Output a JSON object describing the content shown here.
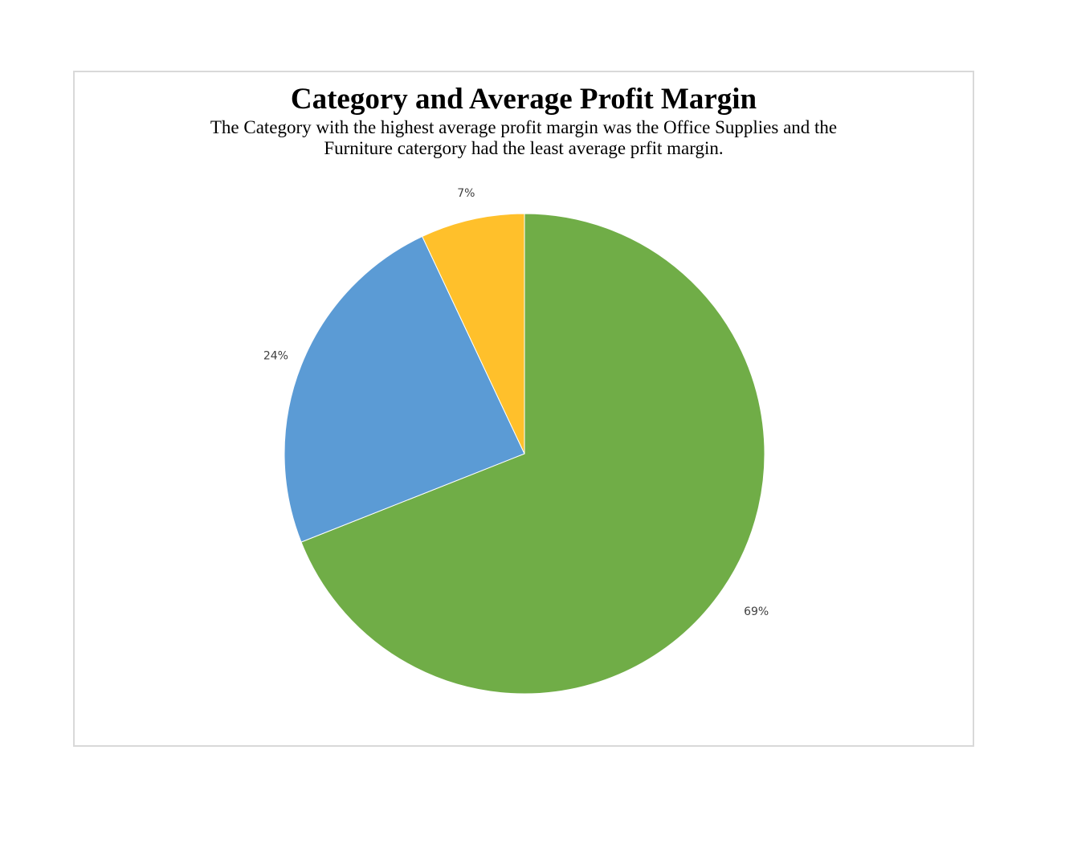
{
  "chart_data": {
    "type": "pie",
    "title": "Category and Average Profit Margin",
    "subtitle": "The Category with the highest average profit margin was the Office Supplies and the Furniture catergory had the least average prfit margin.",
    "slices": [
      {
        "value": 69,
        "label": "69%",
        "color": "#70ad47"
      },
      {
        "value": 24,
        "label": "24%",
        "color": "#5b9bd5"
      },
      {
        "value": 7,
        "label": "7%",
        "color": "#ffc02b"
      }
    ],
    "start_angle_deg": 0,
    "direction": "clockwise",
    "legend": "none"
  }
}
